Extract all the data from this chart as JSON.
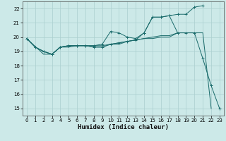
{
  "title": "",
  "xlabel": "Humidex (Indice chaleur)",
  "ylabel": "",
  "bg_color": "#cce9e8",
  "grid_color": "#aacfcf",
  "line_color": "#1a6b6b",
  "xlim": [
    -0.5,
    23.5
  ],
  "ylim": [
    14.5,
    22.5
  ],
  "xticks": [
    0,
    1,
    2,
    3,
    4,
    5,
    6,
    7,
    8,
    9,
    10,
    11,
    12,
    13,
    14,
    15,
    16,
    17,
    18,
    19,
    20,
    21,
    22,
    23
  ],
  "yticks": [
    15,
    16,
    17,
    18,
    19,
    20,
    21,
    22
  ],
  "series": [
    {
      "x": [
        0,
        1,
        2,
        3,
        4,
        5,
        6,
        7,
        8,
        9,
        10,
        11,
        12,
        13,
        14,
        15,
        16,
        17,
        18,
        19,
        20,
        21,
        22,
        23
      ],
      "y": [
        19.9,
        19.3,
        19.0,
        18.8,
        19.3,
        19.4,
        19.4,
        19.4,
        19.3,
        19.3,
        19.5,
        19.6,
        19.7,
        19.8,
        20.3,
        21.4,
        21.4,
        21.5,
        20.3,
        20.3,
        20.3,
        18.5,
        16.6,
        15.0
      ],
      "marker": true
    },
    {
      "x": [
        0,
        1,
        2,
        3,
        4,
        5,
        6,
        7,
        8,
        9,
        10,
        11,
        12,
        13,
        14,
        15,
        16,
        17,
        18,
        19,
        20,
        21
      ],
      "y": [
        19.9,
        19.3,
        19.0,
        18.8,
        19.3,
        19.4,
        19.4,
        19.4,
        19.4,
        19.5,
        20.4,
        20.3,
        20.0,
        19.9,
        20.3,
        21.4,
        21.4,
        21.5,
        21.6,
        21.6,
        22.1,
        22.2
      ],
      "marker": true
    },
    {
      "x": [
        0,
        1,
        2,
        3,
        4,
        5,
        6,
        7,
        8,
        9,
        10,
        11,
        12,
        13,
        14,
        15,
        16,
        17,
        18,
        19,
        20
      ],
      "y": [
        19.9,
        19.3,
        19.0,
        18.8,
        19.3,
        19.4,
        19.4,
        19.4,
        19.4,
        19.4,
        19.5,
        19.6,
        19.7,
        19.8,
        19.9,
        20.0,
        20.1,
        20.1,
        20.3,
        20.3,
        20.3
      ],
      "marker": false
    },
    {
      "x": [
        0,
        2,
        3,
        4,
        5,
        6,
        7,
        8,
        9,
        10,
        11,
        12,
        13,
        14,
        15,
        16,
        17,
        18,
        19,
        20,
        21,
        22,
        23
      ],
      "y": [
        19.9,
        18.8,
        18.8,
        19.3,
        19.3,
        19.4,
        19.4,
        19.3,
        19.3,
        19.5,
        19.5,
        19.7,
        19.8,
        19.9,
        19.9,
        20.0,
        20.0,
        20.3,
        20.3,
        20.3,
        20.3,
        15.0,
        null
      ],
      "marker": false
    }
  ]
}
